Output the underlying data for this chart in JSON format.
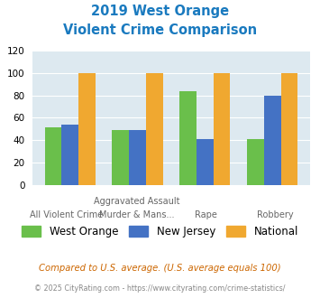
{
  "title_line1": "2019 West Orange",
  "title_line2": "Violent Crime Comparison",
  "west_orange": [
    51,
    49,
    84,
    41
  ],
  "new_jersey": [
    54,
    49,
    41,
    80
  ],
  "national": [
    100,
    100,
    100,
    100
  ],
  "color_wo": "#6abf4b",
  "color_nj": "#4472c4",
  "color_nat": "#f0a830",
  "bg_color": "#dde9f0",
  "title_color": "#1a7abf",
  "ylim": [
    0,
    120
  ],
  "yticks": [
    0,
    20,
    40,
    60,
    80,
    100,
    120
  ],
  "footer1": "Compared to U.S. average. (U.S. average equals 100)",
  "footer2": "© 2025 CityRating.com - https://www.cityrating.com/crime-statistics/",
  "footer1_color": "#cc6600",
  "footer2_color": "#888888",
  "xlabel_top": [
    "",
    "Aggravated Assault",
    "",
    ""
  ],
  "xlabel_bottom": [
    "All Violent Crime",
    "Murder & Mans...",
    "Rape",
    "Robbery"
  ]
}
